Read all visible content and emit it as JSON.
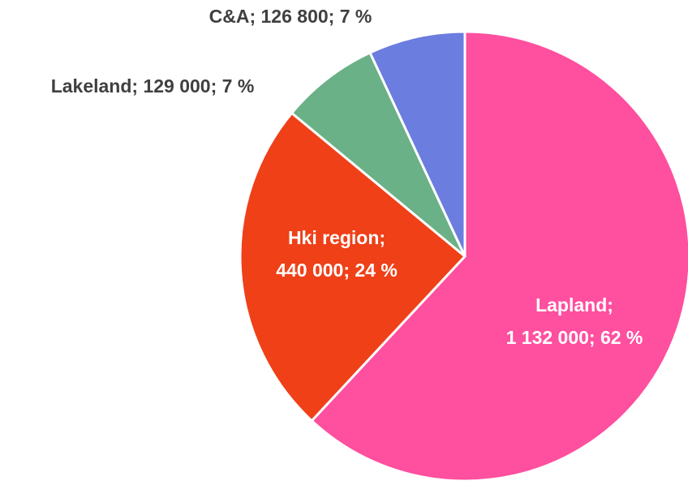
{
  "chart_data": {
    "type": "pie",
    "values": [
      1132000,
      440000,
      129000,
      126800
    ],
    "value_labels": [
      [
        "Lapland;",
        "1 132 000; 62 %"
      ],
      [
        "Hki region;",
        "440 000; 24 %"
      ],
      [
        "Lakeland; 129 000; 7 %"
      ],
      [
        "C&A; 126 800; 7 %"
      ]
    ],
    "colors": [
      "#ff4f9f",
      "#ef4018",
      "#6ab187",
      "#6b7ddf"
    ]
  }
}
